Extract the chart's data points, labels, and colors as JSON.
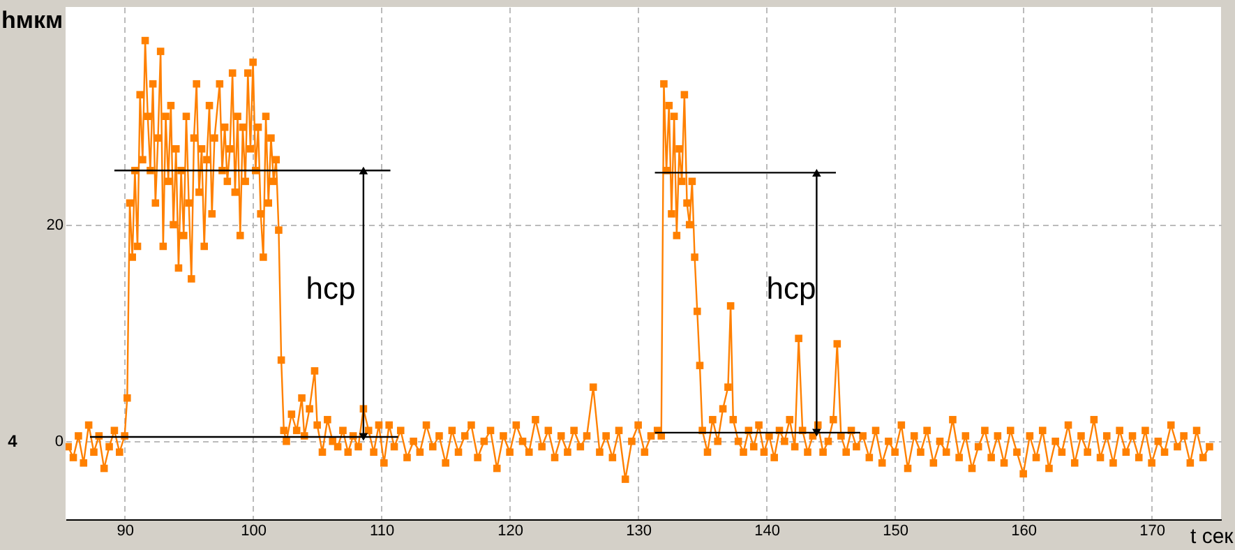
{
  "chart_data": {
    "type": "line",
    "ylabel": "hмкм",
    "xlabel": "t сек",
    "xlim": [
      85.4,
      175.4
    ],
    "xticks": [
      90,
      100,
      110,
      120,
      130,
      140,
      150,
      160,
      170
    ],
    "ylim": [
      -7.2,
      40.1
    ],
    "yticks": [
      0,
      20
    ],
    "grid": true,
    "marker": "square",
    "line_style": "solid",
    "annotations": [
      "hср",
      "hср",
      "4"
    ],
    "series": [
      {
        "color": "#ff8000",
        "x": [
          85.6,
          86.0,
          86.4,
          86.8,
          87.2,
          87.6,
          88.0,
          88.4,
          88.8,
          89.2,
          89.6,
          90.0,
          90.2,
          90.4,
          90.6,
          90.8,
          91.0,
          91.2,
          91.4,
          91.6,
          91.8,
          92.0,
          92.2,
          92.4,
          92.6,
          92.8,
          93.0,
          93.2,
          93.4,
          93.6,
          93.8,
          94.0,
          94.2,
          94.4,
          94.6,
          94.8,
          95.0,
          95.2,
          95.4,
          95.6,
          95.8,
          96.0,
          96.2,
          96.4,
          96.6,
          96.8,
          97.0,
          97.4,
          97.6,
          97.8,
          98.0,
          98.2,
          98.4,
          98.6,
          98.8,
          99.0,
          99.2,
          99.4,
          99.6,
          99.8,
          100.0,
          100.2,
          100.4,
          100.6,
          100.8,
          101.0,
          101.2,
          101.4,
          101.6,
          101.8,
          102.0,
          102.2,
          102.4,
          102.6,
          103.0,
          103.4,
          103.8,
          104.0,
          104.4,
          104.8,
          105.0,
          105.4,
          105.8,
          106.2,
          106.6,
          107.0,
          107.4,
          107.8,
          108.2,
          108.6,
          109.0,
          109.4,
          109.8,
          110.2,
          110.6,
          111.0,
          111.5,
          112.0,
          112.5,
          113.0,
          113.5,
          114.0,
          114.5,
          115.0,
          115.5,
          116.0,
          116.5,
          117.0,
          117.5,
          118.0,
          118.5,
          119.0,
          119.5,
          120.0,
          120.5,
          121.0,
          121.5,
          122.0,
          122.5,
          123.0,
          123.5,
          124.0,
          124.5,
          125.0,
          125.5,
          126.0,
          126.5,
          127.0,
          127.5,
          128.0,
          128.5,
          129.0,
          129.5,
          130.0,
          130.5,
          131.0,
          131.5,
          131.8,
          132.0,
          132.2,
          132.4,
          132.6,
          132.8,
          133.0,
          133.2,
          133.4,
          133.6,
          133.8,
          134.0,
          134.2,
          134.4,
          134.6,
          134.8,
          135.0,
          135.4,
          135.8,
          136.2,
          136.6,
          137.0,
          137.2,
          137.4,
          137.8,
          138.2,
          138.6,
          139.0,
          139.4,
          139.8,
          140.2,
          140.6,
          141.0,
          141.4,
          141.8,
          142.2,
          142.5,
          142.8,
          143.2,
          143.6,
          144.0,
          144.4,
          144.8,
          145.2,
          145.5,
          145.8,
          146.2,
          146.6,
          147.0,
          147.5,
          148.0,
          148.5,
          149.0,
          149.5,
          150.0,
          150.5,
          151.0,
          151.5,
          152.0,
          152.5,
          153.0,
          153.5,
          154.0,
          154.5,
          155.0,
          155.5,
          156.0,
          156.5,
          157.0,
          157.5,
          158.0,
          158.5,
          159.0,
          159.5,
          160.0,
          160.5,
          161.0,
          161.5,
          162.0,
          162.5,
          163.0,
          163.5,
          164.0,
          164.5,
          165.0,
          165.5,
          166.0,
          166.5,
          167.0,
          167.5,
          168.0,
          168.5,
          169.0,
          169.5,
          170.0,
          170.5,
          171.0,
          171.5,
          172.0,
          172.5,
          173.0,
          173.5,
          174.0,
          174.5
        ],
        "values": [
          -0.5,
          -1.5,
          0.5,
          -2,
          1.5,
          -1,
          0.5,
          -2.5,
          -0.5,
          1,
          -1,
          0.5,
          4,
          22,
          17,
          25,
          18,
          32,
          26,
          37,
          30,
          25,
          33,
          22,
          28,
          36,
          18,
          30,
          24,
          31,
          20,
          27,
          16,
          25,
          19,
          30,
          22,
          15,
          28,
          33,
          23,
          27,
          18,
          26,
          31,
          21,
          28,
          33,
          25,
          29,
          24,
          27,
          34,
          23,
          30,
          19,
          29,
          24,
          34,
          27,
          35,
          25,
          29,
          21,
          17,
          30,
          22,
          28,
          24,
          26,
          19.5,
          7.5,
          1,
          0,
          2.5,
          1,
          4,
          0.5,
          3,
          6.5,
          1.5,
          -1,
          2,
          0,
          -0.5,
          1,
          -1,
          0.5,
          -0.5,
          3,
          1,
          -1,
          1.5,
          -2,
          1.5,
          -0.5,
          1,
          -1.5,
          0,
          -1,
          1.5,
          -0.5,
          0.5,
          -2,
          1,
          -1,
          0.5,
          1.5,
          -1.5,
          0,
          1,
          -2.5,
          0.5,
          -1,
          1.5,
          0,
          -1,
          2,
          -0.5,
          1,
          -1.5,
          0.5,
          -1,
          1,
          -0.5,
          0.5,
          5,
          -1,
          0.5,
          -1.5,
          1,
          -3.5,
          0,
          1.5,
          -1,
          0.5,
          1,
          0.5,
          33,
          25,
          31,
          21,
          30,
          19,
          27,
          24,
          32,
          22,
          20,
          24,
          17,
          12,
          7,
          1,
          -1,
          2,
          0,
          3,
          5,
          12.5,
          2,
          0,
          -1,
          1,
          -0.5,
          1.5,
          -1,
          0.5,
          -1.5,
          1,
          0,
          2,
          -0.5,
          9.5,
          1,
          -1,
          0.5,
          1.5,
          -1,
          0,
          2,
          9,
          0.5,
          -1,
          1,
          -0.5,
          0.5,
          -1.5,
          1,
          -2,
          0,
          -1,
          1.5,
          -2.5,
          0.5,
          -1,
          1,
          -2,
          0,
          -1,
          2,
          -1.5,
          0.5,
          -2.5,
          -0.5,
          1,
          -1.5,
          0.5,
          -2,
          1,
          -1,
          -3,
          0.5,
          -1.5,
          1,
          -2.5,
          0,
          -1,
          1.5,
          -2,
          0.5,
          -1,
          2,
          -1.5,
          0.5,
          -2,
          1,
          -1,
          0.5,
          -1.5,
          1,
          -2,
          0,
          -1,
          1.5,
          -0.5,
          0.5,
          -2,
          1,
          -1.5,
          -0.5
        ]
      },
      {
        "color": "#000000",
        "marker": "none",
        "x": [
          89.2,
          110.7
        ],
        "values": [
          25,
          25
        ]
      },
      {
        "color": "#000000",
        "marker": "none",
        "x": [
          87.3,
          111.3
        ],
        "values": [
          0.4,
          0.4
        ]
      },
      {
        "color": "#000000",
        "marker": "none",
        "x": [
          131.3,
          145.4
        ],
        "values": [
          24.8,
          24.8
        ]
      },
      {
        "color": "#000000",
        "marker": "none",
        "x": [
          131.3,
          147.3
        ],
        "values": [
          0.8,
          0.8
        ]
      },
      {
        "color": "#000000",
        "marker": "triangle",
        "x": [
          108.6,
          108.6
        ],
        "values": [
          0.4,
          25
        ]
      },
      {
        "color": "#000000",
        "marker": "triangle",
        "x": [
          143.9,
          143.9
        ],
        "values": [
          0.8,
          24.8
        ]
      }
    ]
  }
}
